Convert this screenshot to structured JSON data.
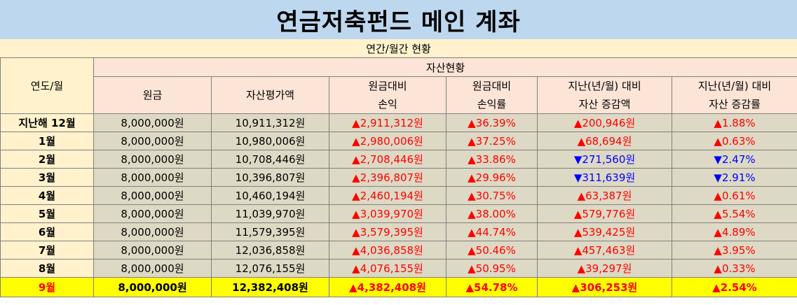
{
  "title": "연금저축펀드 메인 계좌",
  "subtitle": "연간/월간 현황",
  "headers": {
    "year": "연도/월",
    "group": "자산현황",
    "principal": "원금",
    "valuation": "자산평가액",
    "profit_l1": "원금대비",
    "profit_l2": "손익",
    "rate_l1": "원금대비",
    "rate_l2": "손익률",
    "change_l1": "지난(년/월) 대비",
    "change_l2": "자산 증감액",
    "change_rate_l1": "지난(년/월) 대비",
    "change_rate_l2": "자산 증감률"
  },
  "colors": {
    "up": "#ff0000",
    "down": "#0000ff",
    "header_blue": "#bdd7ee",
    "header_peach": "#fce4d6",
    "header_yellow": "#fff2cc",
    "cell_gray": "#ddd9c4",
    "highlight": "#ffff00"
  },
  "rows": [
    {
      "label": "지난해 12월",
      "principal": "8,000,000원",
      "valuation": "10,911,312원",
      "profit": "▲2,911,312원",
      "rate": "▲36.39%",
      "change": "▲200,946원",
      "change_rate": "▲1.88%",
      "change_dir": "up"
    },
    {
      "label": "1월",
      "principal": "8,000,000원",
      "valuation": "10,980,006원",
      "profit": "▲2,980,006원",
      "rate": "▲37.25%",
      "change": "▲68,694원",
      "change_rate": "▲0.63%",
      "change_dir": "up"
    },
    {
      "label": "2월",
      "principal": "8,000,000원",
      "valuation": "10,708,446원",
      "profit": "▲2,708,446원",
      "rate": "▲33.86%",
      "change": "▼271,560원",
      "change_rate": "▼2.47%",
      "change_dir": "down"
    },
    {
      "label": "3월",
      "principal": "8,000,000원",
      "valuation": "10,396,807원",
      "profit": "▲2,396,807원",
      "rate": "▲29.96%",
      "change": "▼311,639원",
      "change_rate": "▼2.91%",
      "change_dir": "down"
    },
    {
      "label": "4월",
      "principal": "8,000,000원",
      "valuation": "10,460,194원",
      "profit": "▲2,460,194원",
      "rate": "▲30.75%",
      "change": "▲63,387원",
      "change_rate": "▲0.61%",
      "change_dir": "up"
    },
    {
      "label": "5월",
      "principal": "8,000,000원",
      "valuation": "11,039,970원",
      "profit": "▲3,039,970원",
      "rate": "▲38.00%",
      "change": "▲579,776원",
      "change_rate": "▲5.54%",
      "change_dir": "up"
    },
    {
      "label": "6월",
      "principal": "8,000,000원",
      "valuation": "11,579,395원",
      "profit": "▲3,579,395원",
      "rate": "▲44.74%",
      "change": "▲539,425원",
      "change_rate": "▲4.89%",
      "change_dir": "up"
    },
    {
      "label": "7월",
      "principal": "8,000,000원",
      "valuation": "12,036,858원",
      "profit": "▲4,036,858원",
      "rate": "▲50.46%",
      "change": "▲457,463원",
      "change_rate": "▲3.95%",
      "change_dir": "up"
    },
    {
      "label": "8월",
      "principal": "8,000,000원",
      "valuation": "12,076,155원",
      "profit": "▲4,076,155원",
      "rate": "▲50.95%",
      "change": "▲39,297원",
      "change_rate": "▲0.33%",
      "change_dir": "up"
    },
    {
      "label": "9월",
      "principal": "8,000,000원",
      "valuation": "12,382,408원",
      "profit": "▲4,382,408원",
      "rate": "▲54.78%",
      "change": "▲306,253원",
      "change_rate": "▲2.54%",
      "change_dir": "up",
      "current": true
    }
  ]
}
